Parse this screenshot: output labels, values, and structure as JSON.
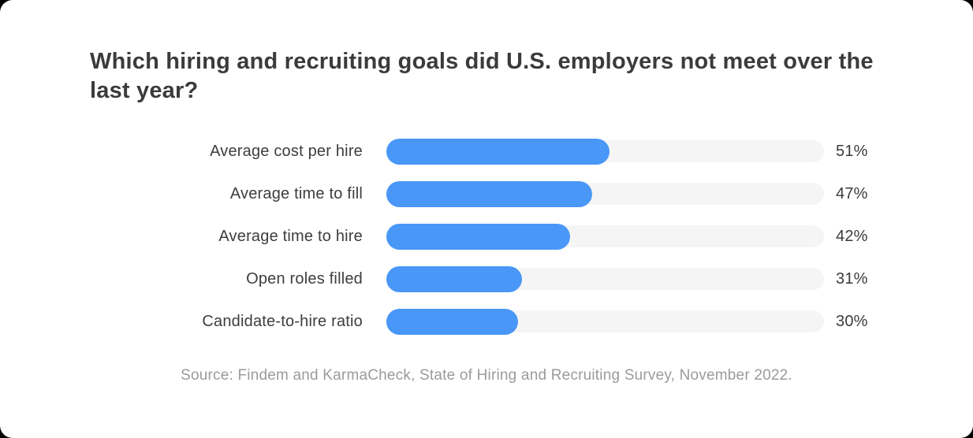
{
  "title": "Which hiring and recruiting goals did U.S. employers not meet over the last year?",
  "source": "Source: Findem and KarmaCheck, State of Hiring and Recruiting Survey, November 2022.",
  "colors": {
    "card_background": "#ffffff",
    "page_background": "#000000",
    "bar_fill": "#4997f7",
    "bar_track": "#f5f5f5",
    "title_text": "#3b3b3b",
    "label_text": "#3d3d3d",
    "value_text": "#3b3b3b",
    "source_text": "#9b9b9b"
  },
  "chart_data": {
    "type": "bar",
    "orientation": "horizontal",
    "title": "Which hiring and recruiting goals did U.S. employers not meet over the last year?",
    "categories": [
      "Average cost per hire",
      "Average time to fill",
      "Average time to hire",
      "Open roles filled",
      "Candidate-to-hire ratio"
    ],
    "values": [
      51,
      47,
      42,
      31,
      30
    ],
    "value_labels": [
      "51%",
      "47%",
      "42%",
      "31%",
      "30%"
    ],
    "xlabel": "",
    "ylabel": "",
    "xlim": [
      0,
      100
    ],
    "grid": false,
    "legend": false,
    "source": "Source: Findem and KarmaCheck, State of Hiring and Recruiting Survey, November 2022."
  }
}
